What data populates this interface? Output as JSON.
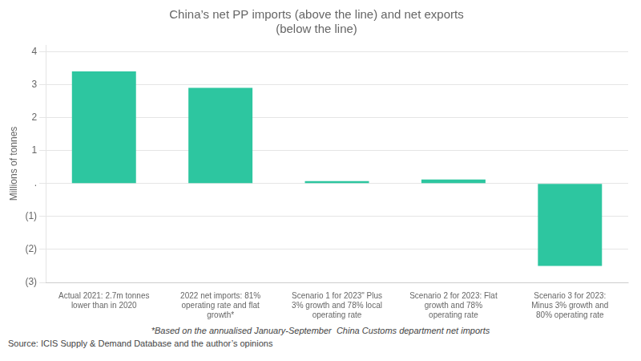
{
  "chart_data": {
    "type": "bar",
    "title": "China’s net PP imports (above the line) and net exports\n(below the line)",
    "ylabel": "Millions of tonnes",
    "categories": [
      "Actual 2021: 2.7m tonnes\nlower than in 2020",
      "2022 net imports: 81%\noperating rate and flat\ngrowth*",
      "Scenario 1 for 2023\" Plus\n3% growth and 78% local\noperating rate",
      "Scenario 2 for 2023: Flat\ngrowth and 78%\noperating rate",
      "Scenario 3 for 2023:\nMinus 3% growth and\n80% operating rate"
    ],
    "values": [
      3.4,
      2.9,
      0.07,
      0.12,
      -2.5
    ],
    "color": "#2dc6a0",
    "ylim": [
      -3,
      4.2
    ],
    "yticks": [
      {
        "value": -3,
        "label": "(3)"
      },
      {
        "value": -2,
        "label": "(2)"
      },
      {
        "value": -1,
        "label": "(1)"
      },
      {
        "value": 0,
        "label": "."
      },
      1,
      2,
      3,
      4
    ],
    "grid": true,
    "footnote": "*Based on the annualised January-September  China Customs department net imports",
    "source": "Source: ICIS Supply & Demand Database and the author’s opinions"
  }
}
